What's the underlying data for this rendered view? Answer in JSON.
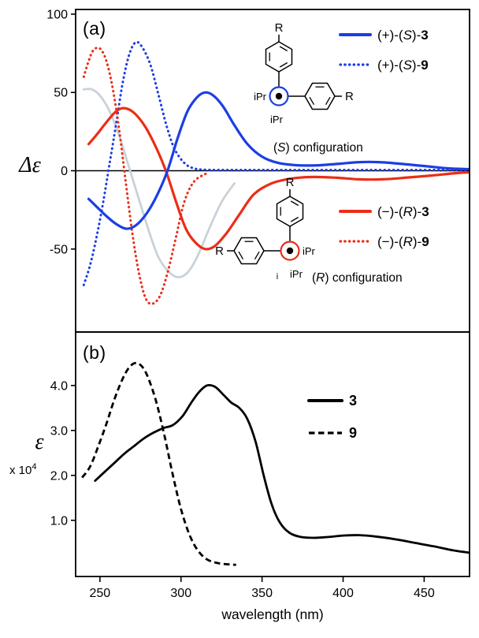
{
  "colors": {
    "blue": "#1c3ee3",
    "red": "#ea2e17",
    "gray": "#c9d2d9",
    "black": "#000000"
  },
  "labels": {
    "xlabel": "wavelength (nm)",
    "panel_a_label": "(a)",
    "panel_b_label": "(b)",
    "ylabel_a": "Δε",
    "ylabel_b": "ε",
    "ylabel_b_scale": "x 10",
    "ylabel_b_scale_exp": "4"
  },
  "insets": {
    "s_config": {
      "caption": "(S) configuration",
      "r_label": "R",
      "ipr_left": "iPr",
      "ipr_bottom": "iPr"
    },
    "r_config": {
      "caption": "(R) configuration",
      "r_label": "R",
      "ipr_right": "iPr",
      "ipr_bottom": "iPr",
      "stray": "i"
    }
  },
  "chart_data": [
    {
      "type": "line",
      "panel": "a",
      "ylabel": "Δε",
      "xlabel": "wavelength (nm)",
      "xlim": [
        235,
        478
      ],
      "ylim": [
        -103,
        103
      ],
      "yticks": [
        100,
        50,
        0,
        -50
      ],
      "ytick_labels": [
        "100",
        "50",
        "0",
        "-50"
      ],
      "zero_line": true,
      "grid": false,
      "series": [
        {
          "name": "gray-unlabeled",
          "color": "gray",
          "style": "solid",
          "x": [
            240,
            245,
            250,
            256,
            262,
            268,
            274,
            280,
            286,
            292,
            298,
            304,
            310,
            317,
            325,
            333
          ],
          "y": [
            52,
            52,
            48,
            38,
            22,
            2,
            -18,
            -38,
            -55,
            -64,
            -68,
            -65,
            -55,
            -38,
            -20,
            -8
          ]
        },
        {
          "name": "(+)-(S)-9",
          "color": "blue",
          "style": "dotted",
          "x": [
            240,
            244,
            248,
            252,
            256,
            260,
            264,
            268,
            272,
            276,
            281,
            286,
            291,
            296,
            302,
            308,
            316,
            330,
            360,
            400,
            440,
            478
          ],
          "y": [
            -73,
            -60,
            -42,
            -20,
            5,
            30,
            56,
            74,
            82,
            79,
            68,
            49,
            29,
            14,
            5,
            1.5,
            0.6,
            0.5,
            0.5,
            0.5,
            0.5,
            0.5
          ]
        },
        {
          "name": "(−)-(R)-9",
          "color": "red",
          "style": "dotted",
          "x": [
            240,
            243,
            246,
            250,
            254,
            258,
            262,
            266,
            270,
            274,
            278,
            282,
            287,
            292,
            297,
            302,
            308,
            316
          ],
          "y": [
            60,
            70,
            77,
            78,
            70,
            52,
            25,
            -8,
            -40,
            -65,
            -81,
            -85,
            -80,
            -64,
            -42,
            -20,
            -7,
            -1.5
          ]
        },
        {
          "name": "(−)-(R)-3",
          "color": "red",
          "style": "solid",
          "x": [
            243,
            248,
            254,
            260,
            265,
            271,
            278,
            285,
            291,
            297,
            303,
            309,
            315,
            321,
            328,
            336,
            345,
            356,
            368,
            382,
            396,
            410,
            424,
            438,
            455,
            470,
            478
          ],
          "y": [
            17,
            23,
            31,
            38,
            40,
            37,
            28,
            14,
            -1,
            -20,
            -37,
            -46,
            -50,
            -48,
            -40,
            -28,
            -15,
            -8,
            -5,
            -4,
            -4.5,
            -5.5,
            -5.5,
            -4.5,
            -3,
            -1.5,
            -1
          ]
        },
        {
          "name": "(+)-(S)-3",
          "color": "blue",
          "style": "solid",
          "x": [
            243,
            248,
            254,
            260,
            266,
            272,
            279,
            286,
            292,
            298,
            304,
            310,
            315,
            320,
            326,
            333,
            341,
            350,
            360,
            372,
            385,
            398,
            410,
            422,
            435,
            450,
            465,
            478
          ],
          "y": [
            -18,
            -23,
            -29,
            -34,
            -37,
            -35,
            -27,
            -14,
            1,
            21,
            38,
            47,
            50,
            48,
            41,
            29,
            17,
            9,
            5,
            3.5,
            3.5,
            4.5,
            5.5,
            5.5,
            4.5,
            3,
            1.5,
            1
          ]
        }
      ],
      "legends": [
        {
          "position": "top-right",
          "entries": [
            {
              "label": "(+)-(S)-3",
              "color": "blue",
              "style": "solid"
            },
            {
              "label": "(+)-(S)-9",
              "color": "blue",
              "style": "dotted"
            }
          ]
        },
        {
          "position": "middle-right",
          "entries": [
            {
              "label": "(−)-(R)-3",
              "color": "red",
              "style": "solid"
            },
            {
              "label": "(−)-(R)-9",
              "color": "red",
              "style": "dotted"
            }
          ]
        }
      ],
      "annotations": [
        "(S) configuration",
        "(R) configuration"
      ]
    },
    {
      "type": "line",
      "panel": "b",
      "ylabel": "ε x 10^4",
      "xlabel": "wavelength (nm)",
      "xlim": [
        235,
        478
      ],
      "ylim": [
        -0.25,
        5.19
      ],
      "yticks": [
        4.0,
        3.0,
        2.0,
        1.0
      ],
      "ytick_labels": [
        "4.0",
        "3.0",
        "2.0",
        "1.0"
      ],
      "xticks": [
        250,
        300,
        350,
        400,
        450
      ],
      "xtick_labels": [
        "250",
        "300",
        "350",
        "400",
        "450"
      ],
      "grid": false,
      "series": [
        {
          "name": "3",
          "color": "black",
          "style": "solid",
          "x": [
            247,
            253,
            259,
            265,
            271,
            277,
            283,
            289,
            295,
            301,
            306,
            311,
            316,
            321,
            326,
            331,
            336,
            341,
            346,
            351,
            356,
            361,
            367,
            374,
            382,
            391,
            400,
            410,
            420,
            432,
            444,
            456,
            468,
            478
          ],
          "y": [
            1.88,
            2.08,
            2.28,
            2.48,
            2.65,
            2.82,
            2.95,
            3.05,
            3.12,
            3.32,
            3.6,
            3.85,
            4.0,
            3.97,
            3.8,
            3.62,
            3.5,
            3.25,
            2.75,
            2.0,
            1.35,
            0.95,
            0.72,
            0.63,
            0.61,
            0.63,
            0.66,
            0.67,
            0.64,
            0.58,
            0.5,
            0.42,
            0.33,
            0.28
          ]
        },
        {
          "name": "9",
          "color": "black",
          "style": "dashed",
          "x": [
            239,
            244,
            249,
            254,
            259,
            264,
            268,
            272,
            276,
            280,
            285,
            290,
            295,
            300,
            305,
            310,
            316,
            324,
            334
          ],
          "y": [
            1.95,
            2.2,
            2.65,
            3.15,
            3.7,
            4.15,
            4.4,
            4.5,
            4.42,
            4.15,
            3.6,
            2.85,
            2.0,
            1.25,
            0.7,
            0.35,
            0.13,
            0.04,
            0.01
          ]
        }
      ],
      "legend": {
        "entries": [
          {
            "label": "3",
            "color": "black",
            "style": "solid"
          },
          {
            "label": "9",
            "color": "black",
            "style": "dashed"
          }
        ]
      }
    }
  ]
}
